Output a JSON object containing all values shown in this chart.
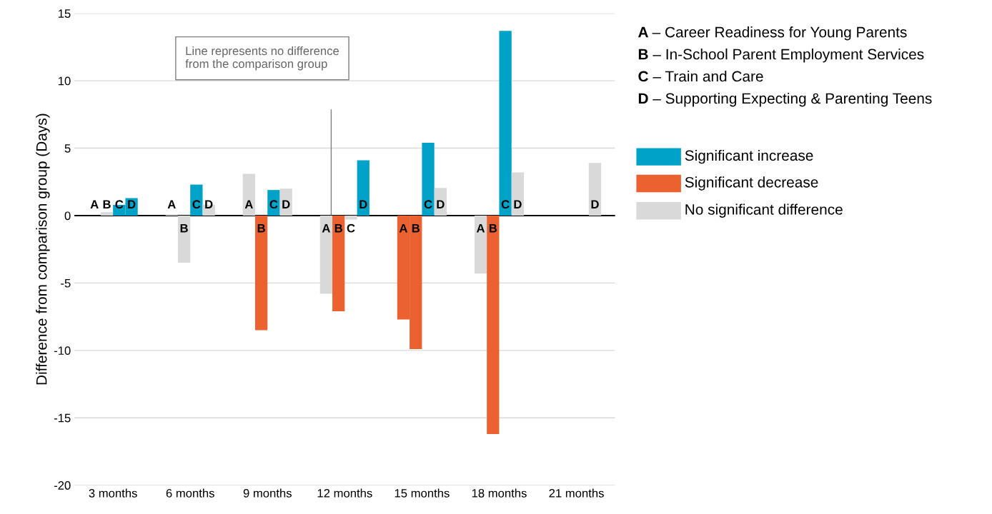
{
  "chart_data": {
    "type": "bar",
    "ylabel": "Difference from comparison group (Days)",
    "categories": [
      "3 months",
      "6 months",
      "9 months",
      "12 months",
      "15 months",
      "18 months",
      "21 months"
    ],
    "series": [
      {
        "name": "A",
        "values": [
          0.0,
          0.1,
          3.1,
          -5.8,
          -7.7,
          -4.3,
          null
        ],
        "colors": [
          "#d9d9d9",
          "#d9d9d9",
          "#d9d9d9",
          "#d9d9d9",
          "#eb6130",
          "#d9d9d9",
          "#d9d9d9"
        ]
      },
      {
        "name": "B",
        "values": [
          0.25,
          -3.5,
          -8.5,
          -7.1,
          -9.9,
          -16.2,
          null
        ],
        "colors": [
          "#d9d9d9",
          "#d9d9d9",
          "#eb6130",
          "#eb6130",
          "#eb6130",
          "#eb6130",
          "#d9d9d9"
        ]
      },
      {
        "name": "C",
        "values": [
          0.8,
          2.3,
          1.9,
          -0.3,
          5.4,
          13.7,
          null
        ],
        "colors": [
          "#00a3c7",
          "#00a3c7",
          "#00a3c7",
          "#d9d9d9",
          "#00a3c7",
          "#00a3c7",
          "#d9d9d9"
        ]
      },
      {
        "name": "D",
        "values": [
          1.3,
          0.8,
          2.0,
          4.1,
          2.05,
          3.2,
          3.9
        ],
        "colors": [
          "#00a3c7",
          "#d9d9d9",
          "#d9d9d9",
          "#00a3c7",
          "#d9d9d9",
          "#d9d9d9",
          "#d9d9d9"
        ]
      }
    ],
    "ylim": [
      -20,
      15
    ],
    "yticks": [
      -20,
      -15,
      -10,
      -5,
      0,
      5,
      10,
      15
    ],
    "grid": "y",
    "ref_lines": [
      {
        "axis": "y",
        "value": 0,
        "color": "#000000"
      }
    ],
    "annotations": [
      "Line represents no difference\nfrom the comparison group",
      "A – Career Readiness for Young Parents",
      "B – In-School Parent Employment Services",
      "C – Train and Care",
      "D – Supporting Expecting & Parenting Teens",
      "Significant increase",
      "Significant decrease",
      "No significant difference"
    ]
  }
}
